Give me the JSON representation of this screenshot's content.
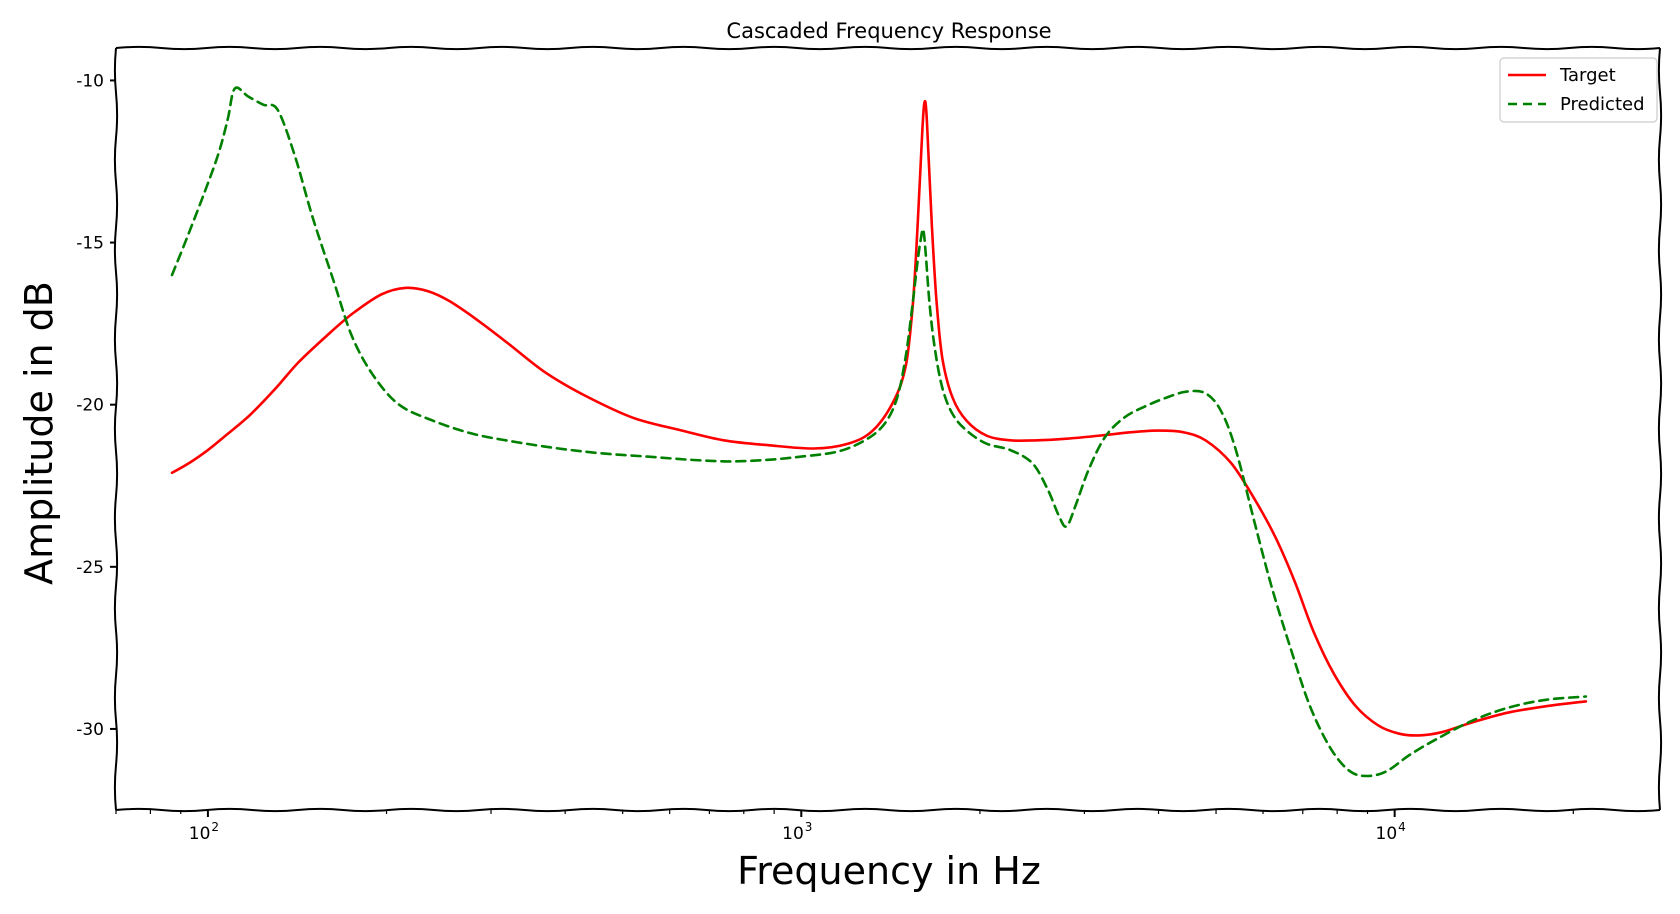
{
  "chart_data": {
    "type": "line",
    "title": "Cascaded Frequency Response",
    "xlabel": "Frequency in Hz",
    "ylabel": "Amplitude in dB",
    "xscale": "log",
    "xlim": [
      70,
      28000
    ],
    "ylim": [
      -32.5,
      -9
    ],
    "x_ticks": [
      {
        "value": 100,
        "base": "10",
        "exp": "2"
      },
      {
        "value": 1000,
        "base": "10",
        "exp": "3"
      },
      {
        "value": 10000,
        "base": "10",
        "exp": "4"
      }
    ],
    "y_ticks": [
      {
        "value": -10,
        "label": "-10"
      },
      {
        "value": -15,
        "label": "-15"
      },
      {
        "value": -20,
        "label": "-20"
      },
      {
        "value": -25,
        "label": "-25"
      },
      {
        "value": -30,
        "label": "-30"
      }
    ],
    "grid": false,
    "legend_position": "top-right",
    "series": [
      {
        "name": "Target",
        "color": "#ff0000",
        "dash": "solid",
        "points": [
          [
            87,
            -22.1
          ],
          [
            93,
            -21.8
          ],
          [
            100,
            -21.4
          ],
          [
            108,
            -20.9
          ],
          [
            118,
            -20.3
          ],
          [
            130,
            -19.5
          ],
          [
            142,
            -18.7
          ],
          [
            158,
            -17.9
          ],
          [
            175,
            -17.2
          ],
          [
            196,
            -16.6
          ],
          [
            215,
            -16.4
          ],
          [
            235,
            -16.5
          ],
          [
            255,
            -16.8
          ],
          [
            285,
            -17.4
          ],
          [
            320,
            -18.1
          ],
          [
            370,
            -19.0
          ],
          [
            430,
            -19.7
          ],
          [
            520,
            -20.4
          ],
          [
            630,
            -20.8
          ],
          [
            740,
            -21.1
          ],
          [
            880,
            -21.25
          ],
          [
            1050,
            -21.35
          ],
          [
            1200,
            -21.2
          ],
          [
            1320,
            -20.8
          ],
          [
            1430,
            -19.9
          ],
          [
            1500,
            -18.8
          ],
          [
            1540,
            -17.0
          ],
          [
            1565,
            -15.0
          ],
          [
            1585,
            -13.0
          ],
          [
            1600,
            -11.5
          ],
          [
            1612,
            -10.7
          ],
          [
            1624,
            -10.9
          ],
          [
            1640,
            -12.5
          ],
          [
            1660,
            -14.5
          ],
          [
            1690,
            -16.8
          ],
          [
            1730,
            -18.6
          ],
          [
            1800,
            -19.8
          ],
          [
            1900,
            -20.5
          ],
          [
            2050,
            -20.95
          ],
          [
            2250,
            -21.1
          ],
          [
            2500,
            -21.1
          ],
          [
            2800,
            -21.05
          ],
          [
            3200,
            -20.95
          ],
          [
            3600,
            -20.85
          ],
          [
            4000,
            -20.8
          ],
          [
            4400,
            -20.85
          ],
          [
            4800,
            -21.1
          ],
          [
            5300,
            -21.8
          ],
          [
            5800,
            -22.9
          ],
          [
            6300,
            -24.1
          ],
          [
            6800,
            -25.5
          ],
          [
            7300,
            -27.0
          ],
          [
            7900,
            -28.3
          ],
          [
            8600,
            -29.3
          ],
          [
            9400,
            -29.9
          ],
          [
            10200,
            -30.15
          ],
          [
            11000,
            -30.2
          ],
          [
            12000,
            -30.1
          ],
          [
            13500,
            -29.8
          ],
          [
            15500,
            -29.5
          ],
          [
            18000,
            -29.3
          ],
          [
            21000,
            -29.15
          ]
        ]
      },
      {
        "name": "Predicted",
        "color": "#008000",
        "dash": "dashed",
        "points": [
          [
            87,
            -16.0
          ],
          [
            92,
            -14.9
          ],
          [
            98,
            -13.6
          ],
          [
            104,
            -12.3
          ],
          [
            108,
            -11.2
          ],
          [
            111,
            -10.25
          ],
          [
            117,
            -10.5
          ],
          [
            124,
            -10.75
          ],
          [
            131,
            -10.9
          ],
          [
            140,
            -12.3
          ],
          [
            150,
            -14.2
          ],
          [
            163,
            -16.2
          ],
          [
            175,
            -17.9
          ],
          [
            190,
            -19.1
          ],
          [
            210,
            -20.0
          ],
          [
            240,
            -20.5
          ],
          [
            280,
            -20.9
          ],
          [
            330,
            -21.15
          ],
          [
            390,
            -21.35
          ],
          [
            460,
            -21.5
          ],
          [
            550,
            -21.6
          ],
          [
            650,
            -21.7
          ],
          [
            760,
            -21.75
          ],
          [
            880,
            -21.7
          ],
          [
            1000,
            -21.6
          ],
          [
            1150,
            -21.45
          ],
          [
            1280,
            -21.1
          ],
          [
            1380,
            -20.6
          ],
          [
            1450,
            -19.8
          ],
          [
            1500,
            -18.5
          ],
          [
            1540,
            -16.9
          ],
          [
            1570,
            -15.6
          ],
          [
            1590,
            -14.9
          ],
          [
            1605,
            -14.6
          ],
          [
            1620,
            -15.3
          ],
          [
            1645,
            -16.9
          ],
          [
            1680,
            -18.3
          ],
          [
            1730,
            -19.5
          ],
          [
            1800,
            -20.3
          ],
          [
            1900,
            -20.8
          ],
          [
            2050,
            -21.2
          ],
          [
            2250,
            -21.4
          ],
          [
            2450,
            -21.8
          ],
          [
            2600,
            -22.6
          ],
          [
            2720,
            -23.45
          ],
          [
            2800,
            -23.75
          ],
          [
            2900,
            -23.1
          ],
          [
            3050,
            -22.0
          ],
          [
            3250,
            -21.0
          ],
          [
            3500,
            -20.4
          ],
          [
            3800,
            -20.05
          ],
          [
            4100,
            -19.8
          ],
          [
            4450,
            -19.6
          ],
          [
            4800,
            -19.65
          ],
          [
            5100,
            -20.2
          ],
          [
            5400,
            -21.4
          ],
          [
            5800,
            -23.6
          ],
          [
            6200,
            -25.6
          ],
          [
            6700,
            -27.6
          ],
          [
            7200,
            -29.3
          ],
          [
            7800,
            -30.6
          ],
          [
            8400,
            -31.3
          ],
          [
            9000,
            -31.45
          ],
          [
            9700,
            -31.3
          ],
          [
            10600,
            -30.8
          ],
          [
            11800,
            -30.3
          ],
          [
            13500,
            -29.75
          ],
          [
            15500,
            -29.35
          ],
          [
            18000,
            -29.1
          ],
          [
            21000,
            -29.0
          ]
        ]
      }
    ]
  }
}
